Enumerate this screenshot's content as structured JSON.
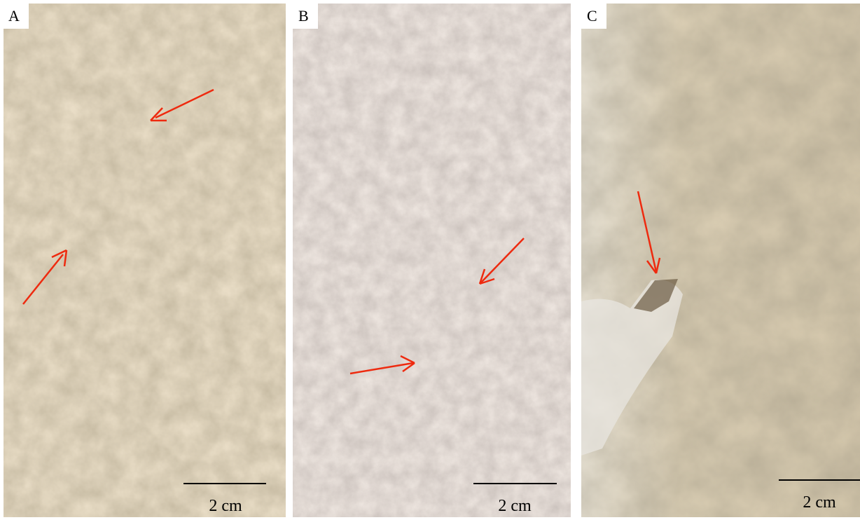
{
  "panels": [
    {
      "label": "A",
      "scale_bar": "2 cm"
    },
    {
      "label": "B",
      "scale_bar": "2 cm"
    },
    {
      "label": "C",
      "scale_bar": "2 cm"
    }
  ]
}
